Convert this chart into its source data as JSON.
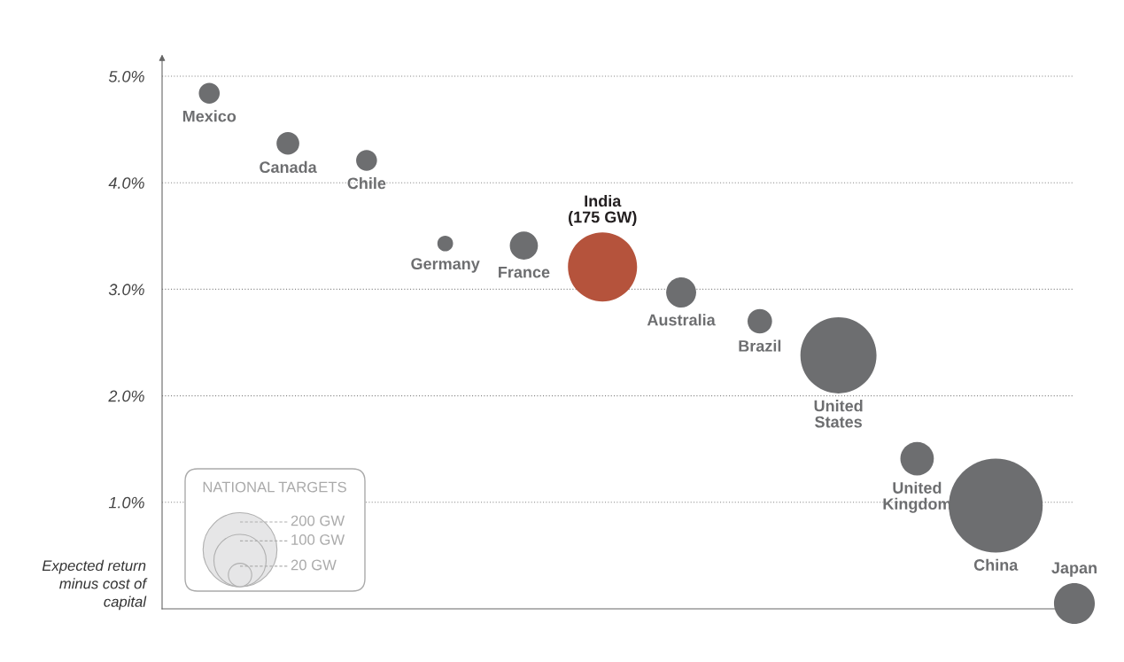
{
  "chart_data": {
    "type": "bubble",
    "categories": [
      "Mexico",
      "Canada",
      "Chile",
      "Germany",
      "France",
      "India\n(175 GW)",
      "Australia",
      "Brazil",
      "United\nStates",
      "United\nKingdom",
      "China",
      "Japan"
    ],
    "values": [
      4.84,
      4.37,
      4.21,
      3.43,
      3.41,
      3.21,
      2.97,
      2.7,
      2.38,
      1.41,
      0.97,
      0.05
    ],
    "sizes": [
      16,
      19,
      16,
      9,
      29,
      175,
      33,
      22,
      212,
      41,
      323,
      61
    ],
    "size_legend": [
      {
        "value": 200,
        "label": "200 GW"
      },
      {
        "value": 100,
        "label": "100 GW"
      },
      {
        "value": 20,
        "label": "20 GW"
      }
    ],
    "legend_title": "NATIONAL TARGETS",
    "colors": [
      "#6d6e70",
      "#6d6e70",
      "#6d6e70",
      "#6d6e70",
      "#6d6e70",
      "#b5533c",
      "#6d6e70",
      "#6d6e70",
      "#6d6e70",
      "#6d6e70",
      "#6d6e70",
      "#6d6e70"
    ],
    "ylabel": "Expected return\nminus cost of\ncapital",
    "ylim": [
      0,
      5.15
    ],
    "yticks": [
      {
        "value": 1,
        "label": "1.0%"
      },
      {
        "value": 2,
        "label": "2.0%"
      },
      {
        "value": 3,
        "label": "3.0%"
      },
      {
        "value": 4,
        "label": "4.0%"
      },
      {
        "value": 5,
        "label": "5.0%"
      }
    ],
    "grid": "y",
    "tick_labels": "y"
  }
}
